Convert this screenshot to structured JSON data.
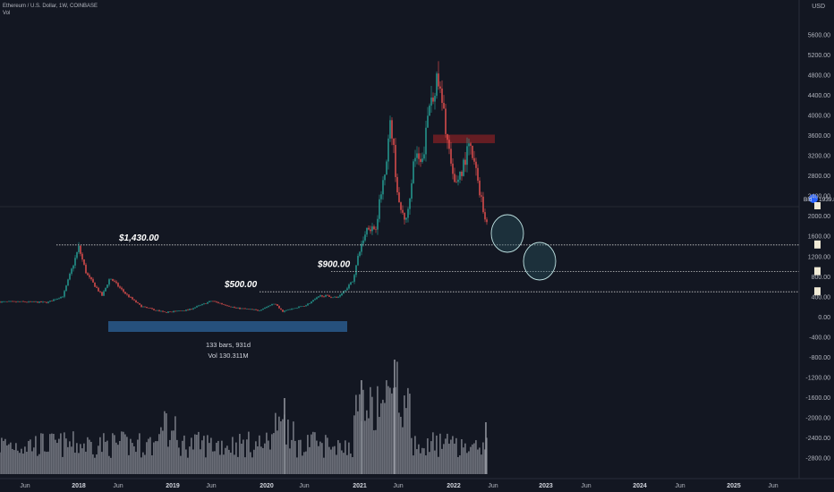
{
  "header": {
    "symbol": "Ethereum / U.S. Dollar, 1W, COINBASE",
    "volume_label": "Vol"
  },
  "currency": "USD",
  "chart_data": {
    "type": "candlestick",
    "symbol": "Ethereum / U.S. Dollar",
    "interval": "1W",
    "exchange": "COINBASE",
    "x_ticks": [
      "Jun",
      "2018",
      "Jun",
      "2019",
      "Jun",
      "2020",
      "Jun",
      "2021",
      "Jun",
      "2022",
      "Jun",
      "2023",
      "Jun",
      "2024",
      "Jun",
      "2025",
      "Jun"
    ],
    "y_ticks": [
      "5600.00",
      "5200.00",
      "4800.00",
      "4400.00",
      "4000.00",
      "3600.00",
      "3200.00",
      "2800.00",
      "2400.00",
      "2000.00",
      "1600.00",
      "1200.00",
      "800.00",
      "400.00",
      "0.00",
      "-400.00",
      "-800.00",
      "-1200.00",
      "-1600.00",
      "-2000.00",
      "-2400.00",
      "-2800.00"
    ],
    "ylim": [
      -3100,
      5750
    ],
    "price_path": [
      [
        "2017-06",
        300
      ],
      [
        "2017-09",
        290
      ],
      [
        "2017-11",
        420
      ],
      [
        "2018-01",
        1380
      ],
      [
        "2018-02",
        850
      ],
      [
        "2018-04",
        420
      ],
      [
        "2018-05",
        780
      ],
      [
        "2018-07",
        460
      ],
      [
        "2018-09",
        210
      ],
      [
        "2018-12",
        90
      ],
      [
        "2019-03",
        140
      ],
      [
        "2019-06",
        320
      ],
      [
        "2019-09",
        180
      ],
      [
        "2019-12",
        130
      ],
      [
        "2020-02",
        270
      ],
      [
        "2020-03",
        110
      ],
      [
        "2020-06",
        230
      ],
      [
        "2020-08",
        430
      ],
      [
        "2020-10",
        380
      ],
      [
        "2020-12",
        700
      ],
      [
        "2021-01",
        1320
      ],
      [
        "2021-02",
        1800
      ],
      [
        "2021-03",
        1750
      ],
      [
        "2021-04",
        2700
      ],
      [
        "2021-05",
        3900
      ],
      [
        "2021-06",
        2200
      ],
      [
        "2021-07",
        1900
      ],
      [
        "2021-08",
        3200
      ],
      [
        "2021-09",
        3000
      ],
      [
        "2021-10",
        4300
      ],
      [
        "2021-11",
        4700
      ],
      [
        "2021-12",
        3800
      ],
      [
        "2022-01",
        2600
      ],
      [
        "2022-02",
        2900
      ],
      [
        "2022-03",
        3400
      ],
      [
        "2022-04",
        2800
      ],
      [
        "2022-05",
        1950
      ]
    ],
    "horizontal_lines": [
      {
        "label": "$1,430.00",
        "value": 1430
      },
      {
        "label": "$900.00",
        "value": 900
      },
      {
        "label": "$500.00",
        "value": 500
      }
    ],
    "resistance_zone": {
      "from": 3450,
      "to": 3620
    },
    "measure": {
      "bars": "133 bars, 931d",
      "volume": "Vol 130.311M"
    },
    "current_price_label": "Bid",
    "current_price_value": "1939.8",
    "volume_series": "relative weekly volume, peaks in May 2021 and Jan 2022"
  },
  "colors": {
    "background": "#131722",
    "up": "#26a69a",
    "down": "#ef5350",
    "volume": "#9598a1",
    "zone": "#7a1f24",
    "measure": "#2a5a8c",
    "circle": "#2e5e6a",
    "bid": "#2962ff"
  }
}
